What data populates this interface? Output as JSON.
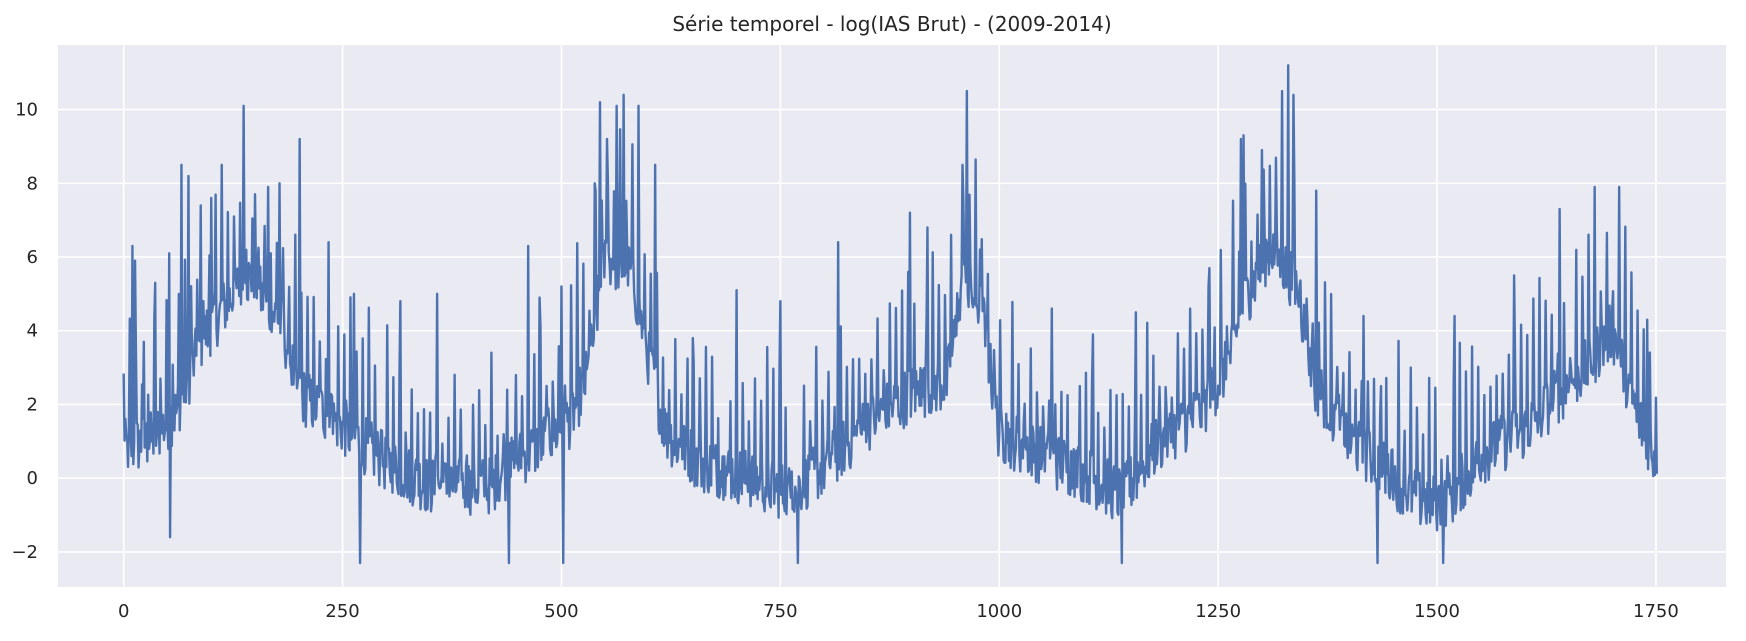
{
  "chart_data": {
    "type": "line",
    "title": "Série temporel - log(IAS Brut) - (2009-2014)",
    "xlabel": "",
    "ylabel": "",
    "xlim": [
      -75,
      1830
    ],
    "ylim": [
      -2.95,
      11.75
    ],
    "xticks": [
      0,
      250,
      500,
      750,
      1000,
      1250,
      1500,
      1750
    ],
    "xtick_labels": [
      "0",
      "250",
      "500",
      "750",
      "1000",
      "1250",
      "1500",
      "1750"
    ],
    "yticks": [
      -2,
      0,
      2,
      4,
      6,
      8,
      10
    ],
    "ytick_labels": [
      "−2",
      "0",
      "2",
      "4",
      "6",
      "8",
      "10"
    ],
    "grid": true,
    "legend": "none",
    "colors": {
      "plot_bg": "#eaeaf2",
      "grid": "#ffffff",
      "line": "#4c72b0",
      "text": "#262626"
    },
    "series": [
      {
        "x_start": 0,
        "x_end": 1751,
        "baseline": [
          [
            0,
            0.8
          ],
          [
            30,
            1.0
          ],
          [
            60,
            1.8
          ],
          [
            90,
            3.8
          ],
          [
            140,
            5.5
          ],
          [
            180,
            4.2
          ],
          [
            200,
            2.3
          ],
          [
            250,
            1.4
          ],
          [
            300,
            0.4
          ],
          [
            350,
            -0.2
          ],
          [
            420,
            -0.2
          ],
          [
            450,
            0.5
          ],
          [
            480,
            1.0
          ],
          [
            510,
            1.6
          ],
          [
            530,
            2.8
          ],
          [
            550,
            6.0
          ],
          [
            580,
            5.6
          ],
          [
            600,
            3.2
          ],
          [
            620,
            1.2
          ],
          [
            660,
            0.4
          ],
          [
            700,
            0.1
          ],
          [
            760,
            -0.4
          ],
          [
            800,
            0.3
          ],
          [
            850,
            1.5
          ],
          [
            900,
            2.3
          ],
          [
            940,
            2.6
          ],
          [
            960,
            5.3
          ],
          [
            980,
            4.6
          ],
          [
            1000,
            1.2
          ],
          [
            1050,
            0.6
          ],
          [
            1100,
            0.1
          ],
          [
            1140,
            -0.5
          ],
          [
            1180,
            0.9
          ],
          [
            1230,
            1.8
          ],
          [
            1260,
            3.0
          ],
          [
            1280,
            4.8
          ],
          [
            1310,
            6.3
          ],
          [
            1340,
            5.2
          ],
          [
            1360,
            2.6
          ],
          [
            1400,
            1.0
          ],
          [
            1440,
            0.2
          ],
          [
            1480,
            -0.6
          ],
          [
            1510,
            -0.7
          ],
          [
            1550,
            0.6
          ],
          [
            1600,
            1.3
          ],
          [
            1640,
            2.3
          ],
          [
            1670,
            3.0
          ],
          [
            1700,
            4.0
          ],
          [
            1730,
            1.6
          ],
          [
            1751,
            0.5
          ]
        ],
        "spikes": [
          [
            10,
            6.3
          ],
          [
            13,
            5.9
          ],
          [
            23,
            3.7
          ],
          [
            36,
            5.3
          ],
          [
            52,
            6.1
          ],
          [
            66,
            8.5
          ],
          [
            74,
            8.2
          ],
          [
            88,
            7.4
          ],
          [
            100,
            7.6
          ],
          [
            112,
            8.5
          ],
          [
            126,
            7.1
          ],
          [
            137,
            10.1
          ],
          [
            150,
            7.7
          ],
          [
            165,
            7.9
          ],
          [
            178,
            8.0
          ],
          [
            201,
            9.2
          ],
          [
            234,
            6.4
          ],
          [
            263,
            5.0
          ],
          [
            316,
            4.8
          ],
          [
            358,
            5.0
          ],
          [
            438,
            2.4
          ],
          [
            462,
            6.3
          ],
          [
            475,
            4.9
          ],
          [
            500,
            5.2
          ],
          [
            538,
            8.0
          ],
          [
            544,
            10.2
          ],
          [
            552,
            9.2
          ],
          [
            563,
            10.1
          ],
          [
            571,
            10.4
          ],
          [
            588,
            10.1
          ],
          [
            607,
            8.5
          ],
          [
            650,
            3.8
          ],
          [
            700,
            5.1
          ],
          [
            750,
            4.8
          ],
          [
            816,
            6.4
          ],
          [
            898,
            7.2
          ],
          [
            918,
            6.8
          ],
          [
            945,
            6.6
          ],
          [
            958,
            8.5
          ],
          [
            963,
            10.5
          ],
          [
            978,
            6.2
          ],
          [
            1060,
            4.6
          ],
          [
            1107,
            3.9
          ],
          [
            1156,
            4.5
          ],
          [
            1240,
            5.7
          ],
          [
            1276,
            9.2
          ],
          [
            1279,
            9.3
          ],
          [
            1300,
            8.9
          ],
          [
            1323,
            10.5
          ],
          [
            1330,
            11.2
          ],
          [
            1336,
            10.4
          ],
          [
            1362,
            7.8
          ],
          [
            1416,
            4.4
          ],
          [
            1436,
            2.5
          ],
          [
            1470,
            3.0
          ],
          [
            1520,
            4.4
          ],
          [
            1588,
            5.5
          ],
          [
            1640,
            7.3
          ],
          [
            1680,
            7.9
          ],
          [
            1708,
            7.9
          ],
          [
            1740,
            4.3
          ]
        ],
        "dips": [
          [
            53,
            -1.6
          ],
          [
            270,
            -2.3
          ],
          [
            440,
            -2.3
          ],
          [
            502,
            -2.3
          ],
          [
            770,
            -2.3
          ],
          [
            1140,
            -2.3
          ],
          [
            1432,
            -2.3
          ],
          [
            1507,
            -2.3
          ]
        ]
      }
    ]
  }
}
